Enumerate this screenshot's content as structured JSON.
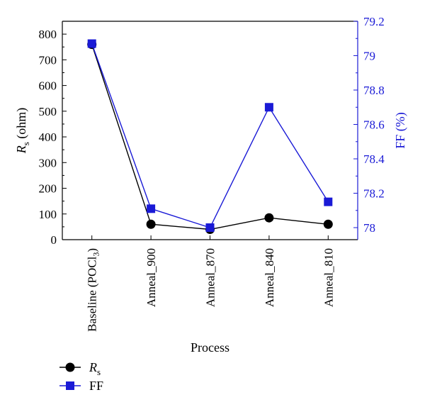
{
  "chart_data": {
    "type": "line",
    "title": "",
    "xlabel": "Process",
    "ylabel": {
      "main": "R",
      "sub": "s",
      "unit": " (ohm)"
    },
    "y2label": "FF (%)",
    "categories": [
      "Baseline (POCl3)",
      "Anneal_900",
      "Anneal_870",
      "Anneal_840",
      "Anneal_810"
    ],
    "category_labels": [
      {
        "main": "Baseline (POCl",
        "sub": "3",
        "tail": ")"
      },
      {
        "main": "Anneal_900",
        "sub": "",
        "tail": ""
      },
      {
        "main": "Anneal_870",
        "sub": "",
        "tail": ""
      },
      {
        "main": "Anneal_840",
        "sub": "",
        "tail": ""
      },
      {
        "main": "Anneal_810",
        "sub": "",
        "tail": ""
      }
    ],
    "ylim": [
      0,
      850
    ],
    "yticks": [
      0,
      100,
      200,
      300,
      400,
      500,
      600,
      700,
      800
    ],
    "y2lim": [
      77.93,
      79.2
    ],
    "y2ticks": [
      "78",
      "78.2",
      "78.4",
      "78.6",
      "78.8",
      "79",
      "79.2"
    ],
    "series": [
      {
        "name": "Rs",
        "label_main": "R",
        "label_sub": "s",
        "axis": "left",
        "marker": "circle",
        "color": "#000000",
        "values": [
          760,
          60,
          40,
          85,
          60
        ]
      },
      {
        "name": "FF",
        "label_main": "FF",
        "label_sub": "",
        "axis": "right",
        "marker": "square",
        "color": "#1a1ad6",
        "values": [
          79.07,
          78.11,
          78.0,
          78.7,
          78.15
        ]
      }
    ],
    "legend": "bottom-left",
    "grid": false
  }
}
